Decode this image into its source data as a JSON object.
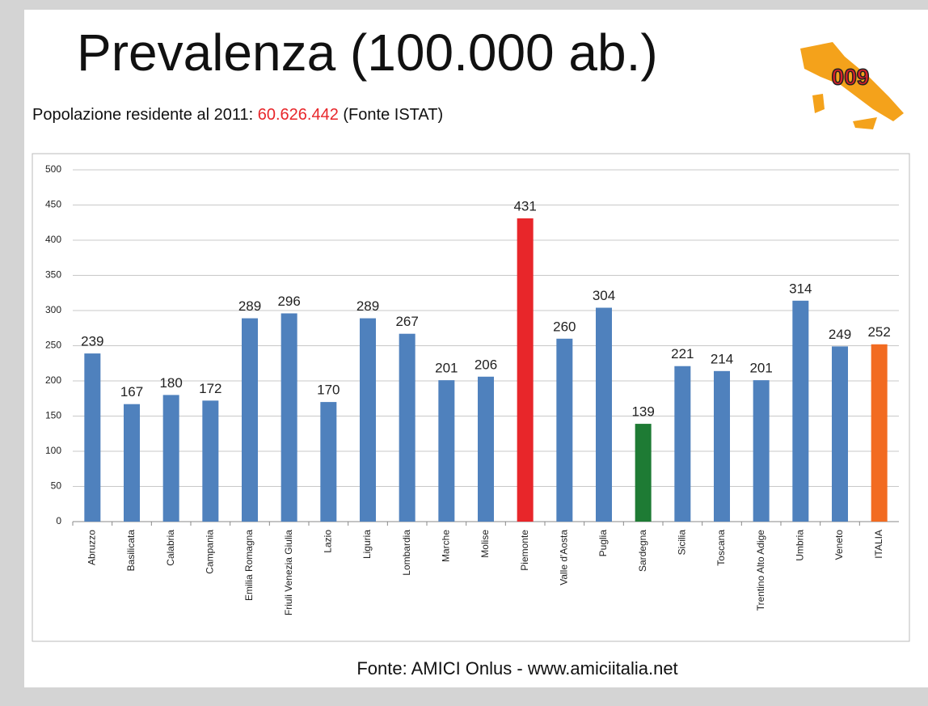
{
  "title": "Prevalenza (100.000 ab.)",
  "subtitle": {
    "prefix": "Popolazione residente al 2011: ",
    "population": "60.626.442",
    "suffix": " (Fonte ISTAT)"
  },
  "logo": "009",
  "footer": "Fonte: AMICI Onlus -  www.amiciitalia.net",
  "chart_data": {
    "type": "bar",
    "categories": [
      "Abruzzo",
      "Basilicata",
      "Calabria",
      "Campania",
      "Emilia Romagna",
      "Friuli Venezia Giulia",
      "Lazio",
      "Liguria",
      "Lombardia",
      "Marche",
      "Molise",
      "Piemonte",
      "Valle d'Aosta",
      "Puglia",
      "Sardegna",
      "Sicilia",
      "Toscana",
      "Trentino Alto Adige",
      "Umbria",
      "Veneto",
      "ITALIA"
    ],
    "values": [
      239,
      167,
      180,
      172,
      289,
      296,
      170,
      289,
      267,
      201,
      206,
      431,
      260,
      304,
      139,
      221,
      214,
      201,
      314,
      249,
      252
    ],
    "colors": [
      "#4f81bd",
      "#4f81bd",
      "#4f81bd",
      "#4f81bd",
      "#4f81bd",
      "#4f81bd",
      "#4f81bd",
      "#4f81bd",
      "#4f81bd",
      "#4f81bd",
      "#4f81bd",
      "#e8262a",
      "#4f81bd",
      "#4f81bd",
      "#1e7b34",
      "#4f81bd",
      "#4f81bd",
      "#4f81bd",
      "#4f81bd",
      "#4f81bd",
      "#f26b21"
    ],
    "ylim": [
      0,
      500
    ],
    "yticks": [
      0,
      50,
      100,
      150,
      200,
      250,
      300,
      350,
      400,
      450,
      500
    ],
    "grid": true
  }
}
